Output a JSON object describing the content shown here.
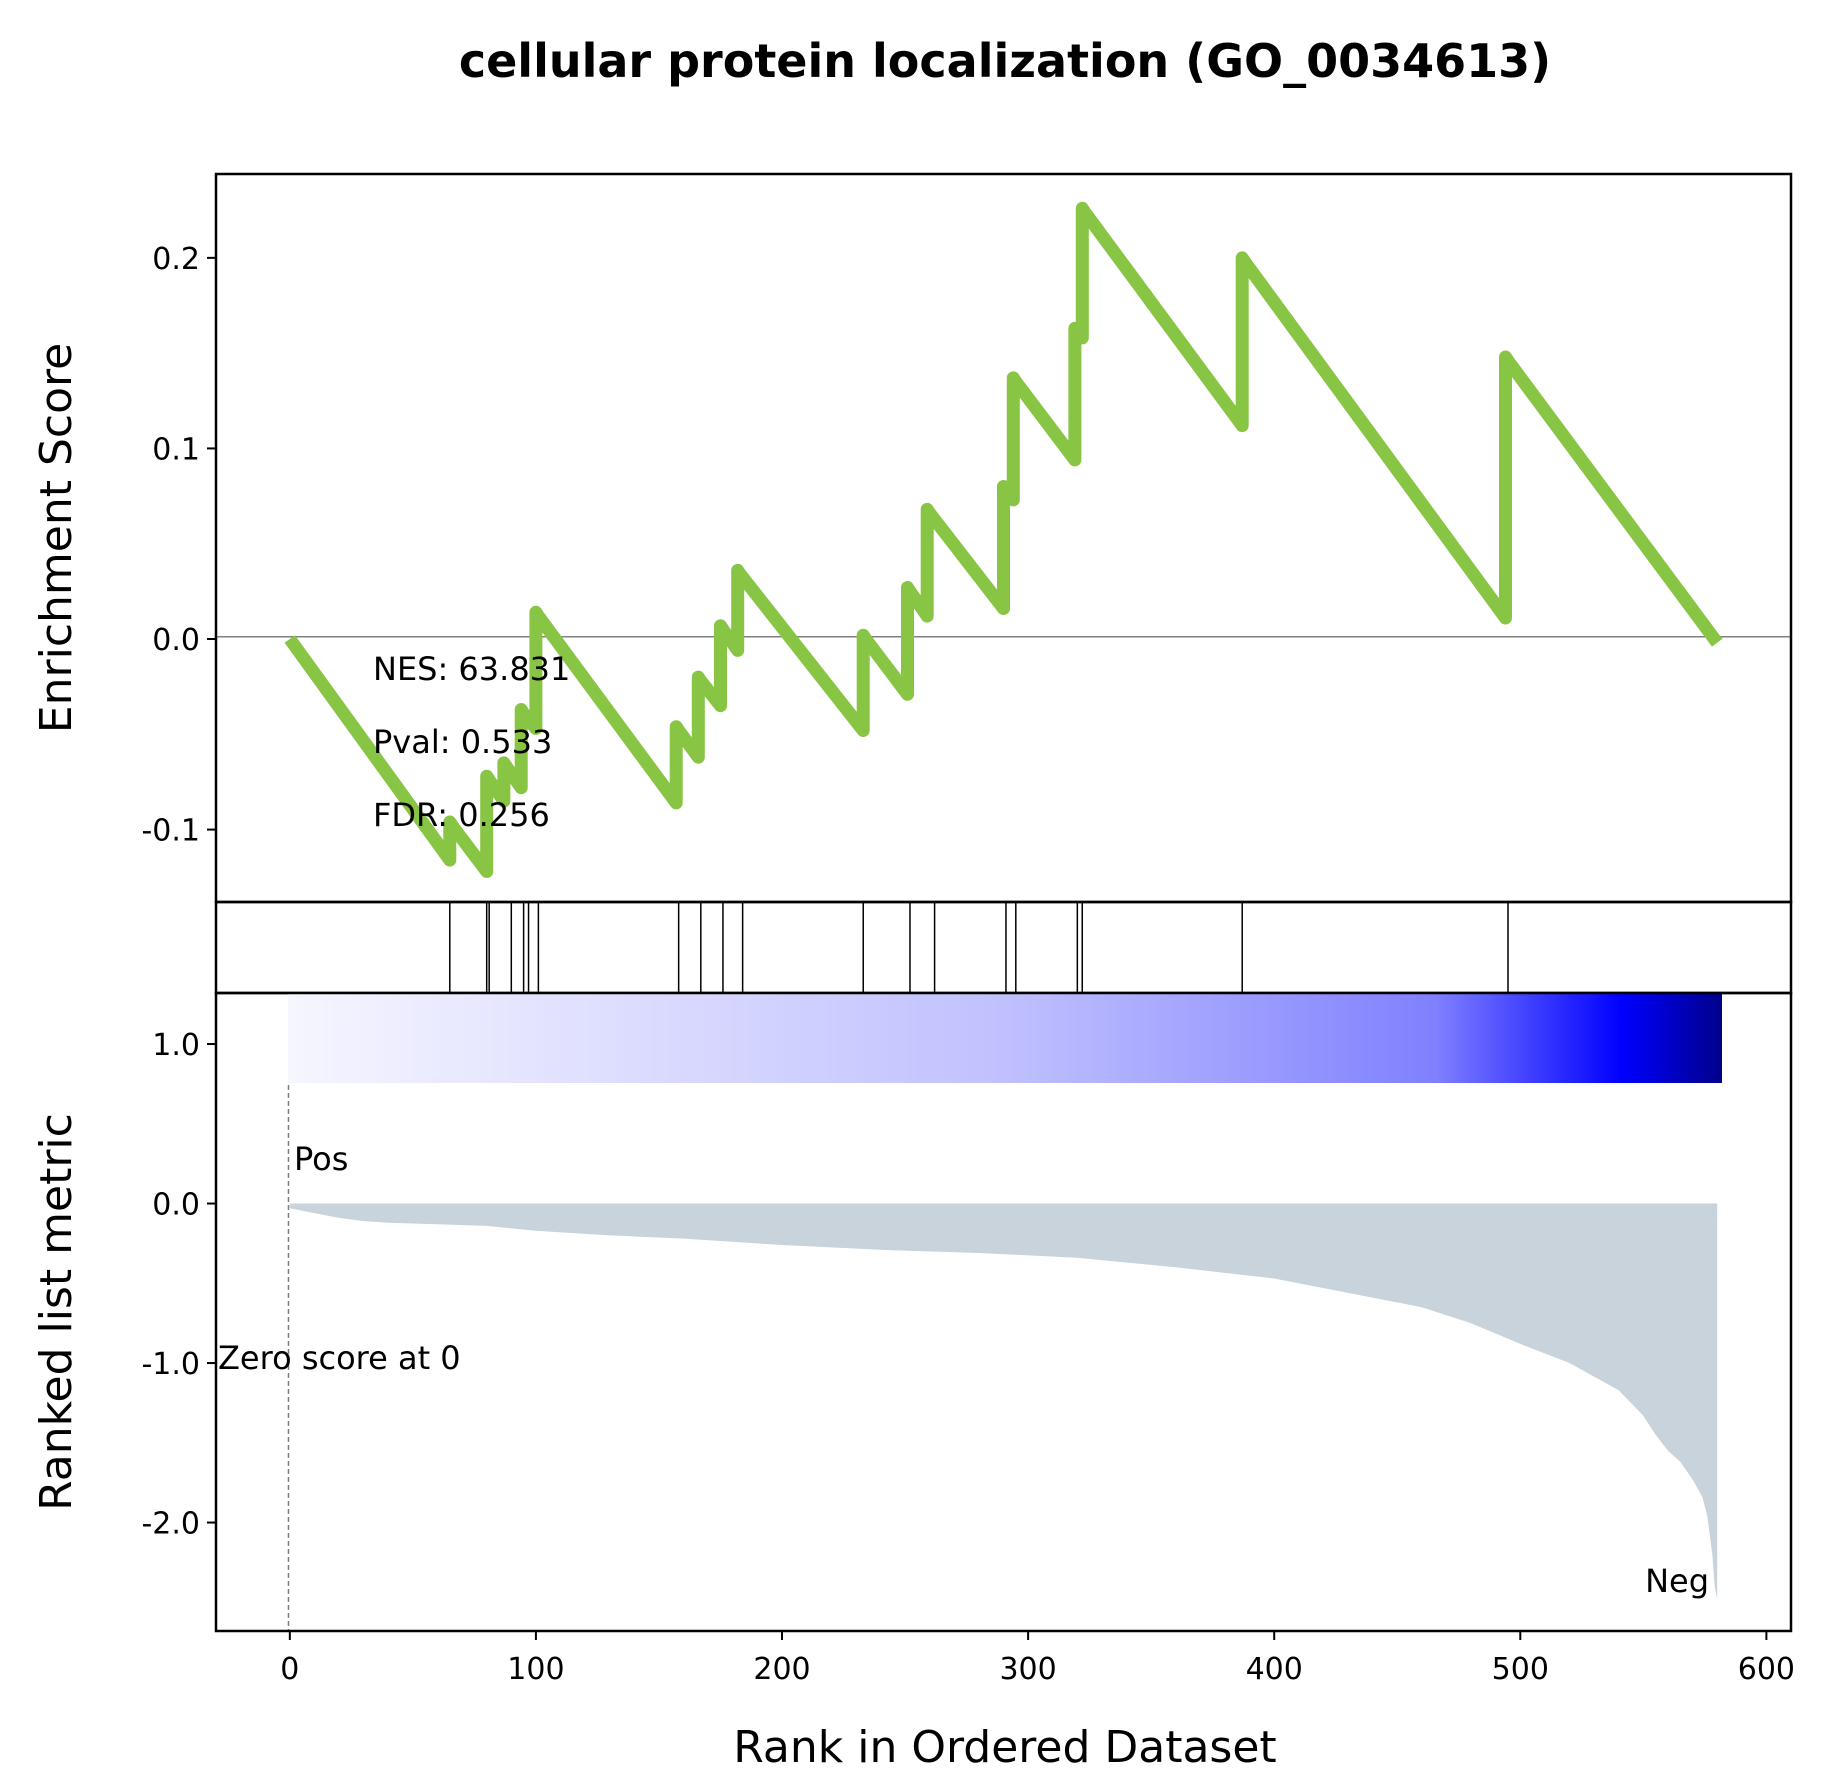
{
  "chart_data": {
    "type": "line",
    "title": "cellular protein localization (GO_0034613)",
    "xlabel": "Rank in Ordered Dataset",
    "ylabel_es": "Enrichment Score",
    "ylabel_rank": "Ranked list metric",
    "xlim": [
      -30,
      610
    ],
    "x_ticks": [
      0,
      100,
      200,
      300,
      400,
      500,
      600
    ],
    "x_tick_labels": [
      "0",
      "100",
      "200",
      "300",
      "400",
      "500",
      "600"
    ],
    "es_ylim": [
      -0.138,
      0.244
    ],
    "es_ticks": [
      -0.1,
      0.0,
      0.1,
      0.2
    ],
    "es_tick_labels": [
      "-0.1",
      "0.0",
      "0.1",
      "0.2"
    ],
    "rank_ylim": [
      -2.68,
      1.32
    ],
    "rank_ticks": [
      -2.0,
      -1.0,
      0.0,
      1.0
    ],
    "rank_tick_labels": [
      "-2.0",
      "-1.0",
      "0.0",
      "1.0"
    ],
    "series": [
      {
        "x": [
          0,
          65,
          65,
          66,
          80,
          80,
          81,
          87,
          87,
          88,
          94,
          94,
          95,
          100,
          100,
          101,
          157,
          157,
          158,
          166,
          166,
          167,
          175,
          175,
          176,
          182,
          182,
          183,
          233,
          233,
          234,
          251,
          251,
          252,
          259,
          259,
          260,
          290,
          290,
          291,
          294,
          294,
          295,
          319,
          319,
          320,
          322,
          322,
          323,
          387,
          387,
          388,
          494,
          494,
          495,
          580
        ],
        "y": [
          0.0,
          -0.116,
          -0.096,
          -0.098,
          -0.122,
          -0.072,
          -0.074,
          -0.085,
          -0.065,
          -0.067,
          -0.078,
          -0.037,
          -0.039,
          -0.047,
          0.014,
          0.012,
          -0.086,
          -0.046,
          -0.048,
          -0.062,
          -0.02,
          -0.022,
          -0.035,
          0.007,
          0.005,
          -0.006,
          0.036,
          0.034,
          -0.048,
          0.002,
          0.0,
          -0.029,
          0.027,
          0.025,
          0.012,
          0.068,
          0.066,
          0.016,
          0.08,
          0.078,
          0.073,
          0.137,
          0.135,
          0.094,
          0.163,
          0.161,
          0.158,
          0.226,
          0.224,
          0.112,
          0.2,
          0.198,
          0.011,
          0.148,
          0.146,
          -0.002
        ],
        "color": "#88C544"
      }
    ],
    "hits": [
      65,
      80,
      81,
      90,
      95,
      97,
      101,
      158,
      167,
      176,
      184,
      233,
      252,
      262,
      291,
      295,
      320,
      322,
      387,
      495
    ],
    "rank_metric": {
      "x": [
        0,
        10,
        20,
        30,
        40,
        60,
        80,
        100,
        130,
        160,
        200,
        240,
        280,
        320,
        360,
        400,
        430,
        460,
        480,
        500,
        520,
        540,
        550,
        555,
        560,
        565,
        570,
        574,
        576,
        578,
        579,
        580
      ],
      "y": [
        -0.03,
        -0.06,
        -0.09,
        -0.11,
        -0.12,
        -0.13,
        -0.14,
        -0.17,
        -0.2,
        -0.22,
        -0.26,
        -0.29,
        -0.31,
        -0.34,
        -0.4,
        -0.47,
        -0.56,
        -0.65,
        -0.75,
        -0.88,
        -1.0,
        -1.17,
        -1.33,
        -1.45,
        -1.55,
        -1.62,
        -1.73,
        -1.84,
        -1.96,
        -2.2,
        -2.4,
        -2.48
      ],
      "fill_color": "#C8D3DC"
    },
    "colorbar": {
      "from": "#F6F6FF",
      "to": "#00008B"
    },
    "zero_line_color": "#808080",
    "annotations": {
      "nes": "NES: 63.831",
      "pval": "Pval: 0.533",
      "fdr": "FDR: 0.256",
      "pos": "Pos",
      "neg": "Neg",
      "zero_score": "Zero score at 0"
    },
    "pos_color": "#FF0000",
    "neg_color": "#0000FF"
  }
}
